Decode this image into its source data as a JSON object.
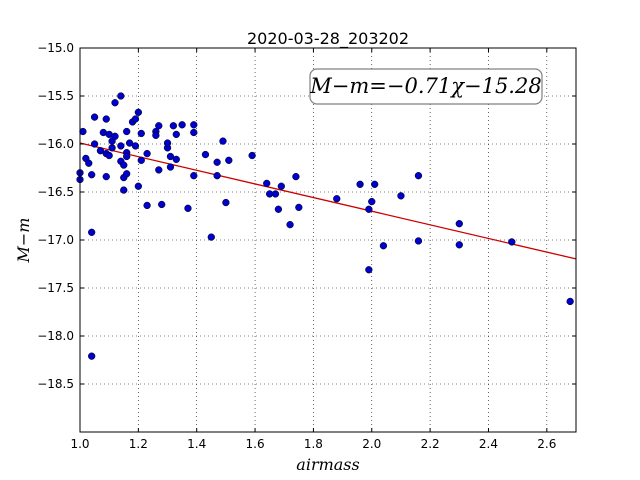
{
  "chart_data": {
    "type": "scatter",
    "title": "2020-03-28_203202",
    "xlabel": "airmass",
    "ylabel": "M−m",
    "xlim": [
      1.0,
      2.7
    ],
    "ylim": [
      -15.0,
      -19.0
    ],
    "y_inverted": true,
    "grid": true,
    "x_ticks": [
      "1.0",
      "1.2",
      "1.4",
      "1.6",
      "1.8",
      "2.0",
      "2.2",
      "2.4",
      "2.6"
    ],
    "y_ticks": [
      "−15.0",
      "−15.5",
      "−16.0",
      "−16.5",
      "−17.0",
      "−17.5",
      "−18.0",
      "−18.5"
    ],
    "annotation": "M−m=−0.71χ−15.28",
    "fit": {
      "slope": -0.71,
      "intercept": -15.28,
      "color": "#cc0000"
    },
    "point_color": "#0000cc",
    "points": [
      [
        1.0,
        -16.3
      ],
      [
        1.0,
        -16.37
      ],
      [
        1.01,
        -15.87
      ],
      [
        1.02,
        -16.15
      ],
      [
        1.03,
        -16.2
      ],
      [
        1.04,
        -16.32
      ],
      [
        1.04,
        -16.92
      ],
      [
        1.04,
        -18.21
      ],
      [
        1.05,
        -15.72
      ],
      [
        1.05,
        -16.0
      ],
      [
        1.07,
        -16.07
      ],
      [
        1.08,
        -15.88
      ],
      [
        1.09,
        -15.74
      ],
      [
        1.09,
        -16.34
      ],
      [
        1.09,
        -16.1
      ],
      [
        1.1,
        -15.9
      ],
      [
        1.1,
        -16.12
      ],
      [
        1.11,
        -16.04
      ],
      [
        1.11,
        -15.97
      ],
      [
        1.12,
        -15.92
      ],
      [
        1.12,
        -15.57
      ],
      [
        1.14,
        -15.5
      ],
      [
        1.14,
        -16.02
      ],
      [
        1.14,
        -16.18
      ],
      [
        1.15,
        -16.48
      ],
      [
        1.15,
        -16.35
      ],
      [
        1.15,
        -16.22
      ],
      [
        1.16,
        -15.87
      ],
      [
        1.16,
        -16.09
      ],
      [
        1.16,
        -16.13
      ],
      [
        1.16,
        -16.31
      ],
      [
        1.17,
        -15.99
      ],
      [
        1.18,
        -15.77
      ],
      [
        1.19,
        -16.02
      ],
      [
        1.19,
        -15.74
      ],
      [
        1.2,
        -15.67
      ],
      [
        1.2,
        -16.44
      ],
      [
        1.21,
        -15.89
      ],
      [
        1.21,
        -16.17
      ],
      [
        1.23,
        -16.64
      ],
      [
        1.23,
        -16.1
      ],
      [
        1.26,
        -15.87
      ],
      [
        1.26,
        -15.91
      ],
      [
        1.27,
        -15.81
      ],
      [
        1.27,
        -16.27
      ],
      [
        1.28,
        -16.63
      ],
      [
        1.3,
        -16.04
      ],
      [
        1.3,
        -15.99
      ],
      [
        1.31,
        -16.13
      ],
      [
        1.31,
        -16.24
      ],
      [
        1.32,
        -15.81
      ],
      [
        1.33,
        -16.16
      ],
      [
        1.33,
        -15.9
      ],
      [
        1.35,
        -15.8
      ],
      [
        1.37,
        -16.67
      ],
      [
        1.39,
        -15.8
      ],
      [
        1.39,
        -15.88
      ],
      [
        1.39,
        -16.33
      ],
      [
        1.43,
        -16.11
      ],
      [
        1.45,
        -16.97
      ],
      [
        1.47,
        -16.19
      ],
      [
        1.47,
        -16.33
      ],
      [
        1.49,
        -15.97
      ],
      [
        1.5,
        -16.61
      ],
      [
        1.51,
        -16.17
      ],
      [
        1.59,
        -16.12
      ],
      [
        1.64,
        -16.41
      ],
      [
        1.65,
        -16.52
      ],
      [
        1.67,
        -16.52
      ],
      [
        1.68,
        -16.68
      ],
      [
        1.69,
        -16.44
      ],
      [
        1.72,
        -16.84
      ],
      [
        1.74,
        -16.34
      ],
      [
        1.75,
        -16.66
      ],
      [
        1.88,
        -16.57
      ],
      [
        1.96,
        -16.42
      ],
      [
        1.99,
        -16.68
      ],
      [
        1.99,
        -17.31
      ],
      [
        2.0,
        -16.6
      ],
      [
        2.01,
        -16.42
      ],
      [
        2.04,
        -17.06
      ],
      [
        2.1,
        -16.54
      ],
      [
        2.16,
        -16.33
      ],
      [
        2.16,
        -17.01
      ],
      [
        2.3,
        -16.83
      ],
      [
        2.3,
        -17.05
      ],
      [
        2.48,
        -17.02
      ],
      [
        2.68,
        -17.64
      ]
    ]
  }
}
